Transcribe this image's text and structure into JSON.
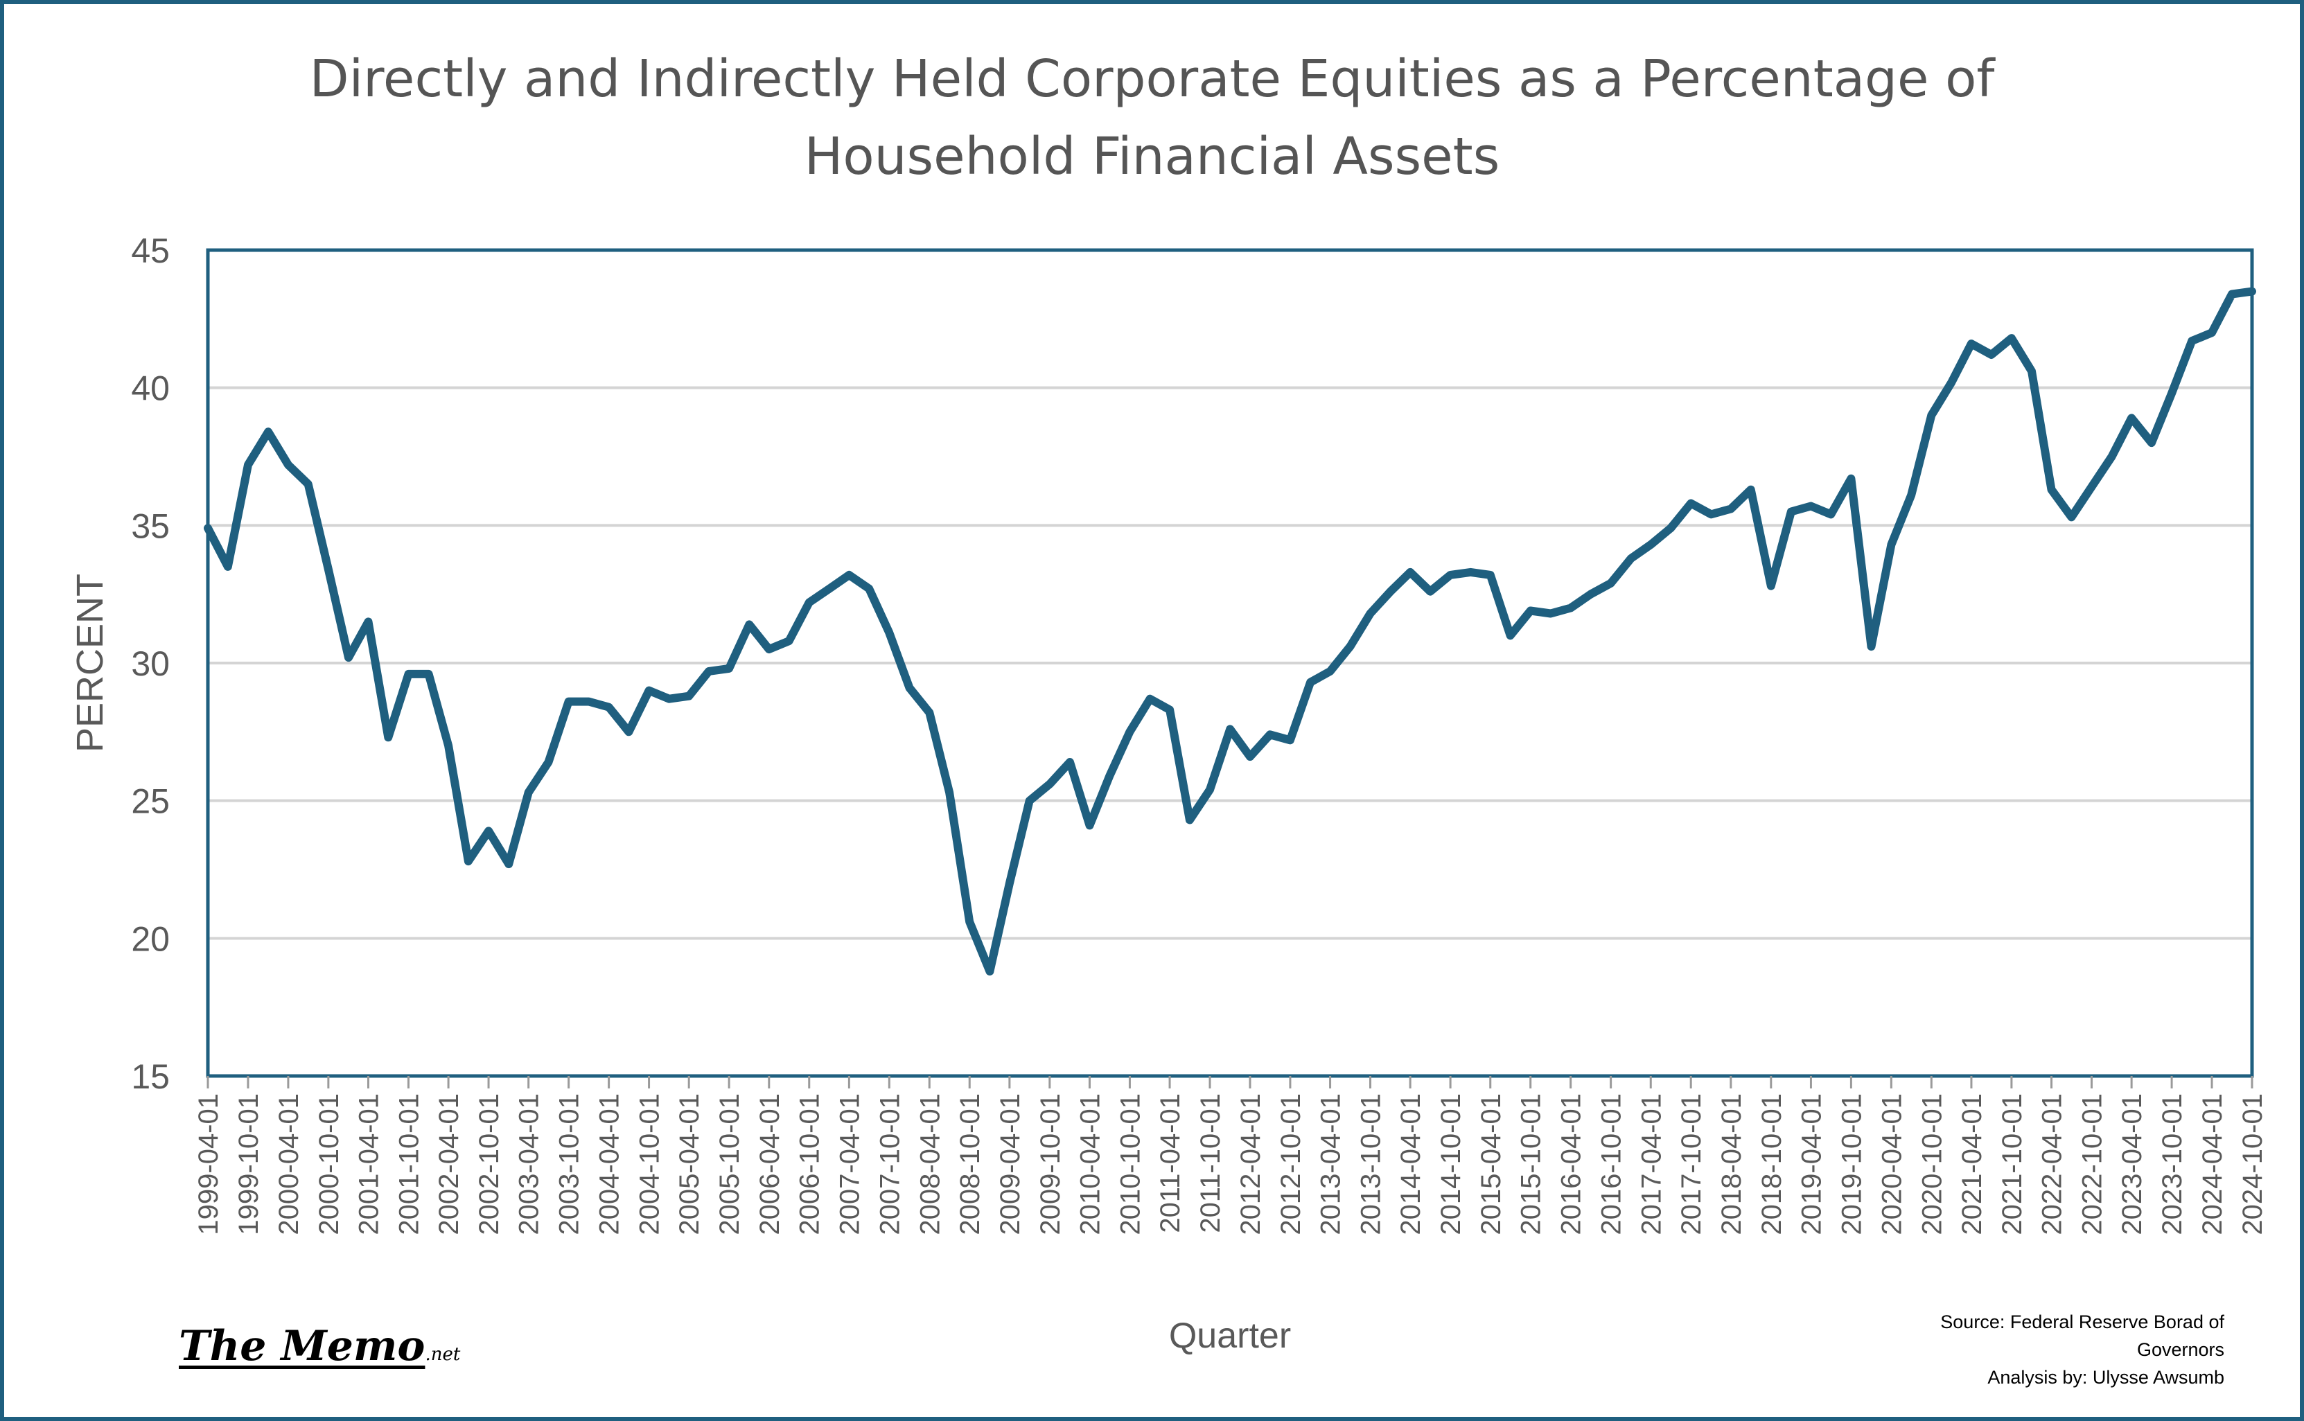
{
  "chart_data": {
    "type": "line",
    "title": "Directly and Indirectly Held Corporate Equities as a Percentage of Household  Financial Assets",
    "title_lines": [
      "Directly and Indirectly Held Corporate Equities as a Percentage of",
      "Household  Financial Assets"
    ],
    "xlabel": "Quarter",
    "ylabel": "PERCENT",
    "ylim": [
      15,
      45
    ],
    "yticks": [
      15,
      20,
      25,
      30,
      35,
      40,
      45
    ],
    "grid": true,
    "legend": "none",
    "line_color": "#1f5f7f",
    "x_tick_labels": [
      "1999-04-01",
      "1999-10-01",
      "2000-04-01",
      "2000-10-01",
      "2001-04-01",
      "2001-10-01",
      "2002-04-01",
      "2002-10-01",
      "2003-04-01",
      "2003-10-01",
      "2004-04-01",
      "2004-10-01",
      "2005-04-01",
      "2005-10-01",
      "2006-04-01",
      "2006-10-01",
      "2007-04-01",
      "2007-10-01",
      "2008-04-01",
      "2008-10-01",
      "2009-04-01",
      "2009-10-01",
      "2010-04-01",
      "2010-10-01",
      "2011-04-01",
      "2011-10-01",
      "2012-04-01",
      "2012-10-01",
      "2013-04-01",
      "2013-10-01",
      "2014-04-01",
      "2014-10-01",
      "2015-04-01",
      "2015-10-01",
      "2016-04-01",
      "2016-10-01",
      "2017-04-01",
      "2017-10-01",
      "2018-04-01",
      "2018-10-01",
      "2019-04-01",
      "2019-10-01",
      "2020-04-01",
      "2020-10-01",
      "2021-04-01",
      "2021-10-01",
      "2022-04-01",
      "2022-10-01",
      "2023-04-01",
      "2023-10-01",
      "2024-04-01",
      "2024-10-01"
    ],
    "series": [
      {
        "x": [
          "1999-04-01",
          "1999-07-01",
          "1999-10-01",
          "2000-01-01",
          "2000-04-01",
          "2000-07-01",
          "2000-10-01",
          "2001-01-01",
          "2001-04-01",
          "2001-07-01",
          "2001-10-01",
          "2002-01-01",
          "2002-04-01",
          "2002-07-01",
          "2002-10-01",
          "2003-01-01",
          "2003-04-01",
          "2003-07-01",
          "2003-10-01",
          "2004-01-01",
          "2004-04-01",
          "2004-07-01",
          "2004-10-01",
          "2005-01-01",
          "2005-04-01",
          "2005-07-01",
          "2005-10-01",
          "2006-01-01",
          "2006-04-01",
          "2006-07-01",
          "2006-10-01",
          "2007-01-01",
          "2007-04-01",
          "2007-07-01",
          "2007-10-01",
          "2008-01-01",
          "2008-04-01",
          "2008-07-01",
          "2008-10-01",
          "2009-01-01",
          "2009-04-01",
          "2009-07-01",
          "2009-10-01",
          "2010-01-01",
          "2010-04-01",
          "2010-07-01",
          "2010-10-01",
          "2011-01-01",
          "2011-04-01",
          "2011-07-01",
          "2011-10-01",
          "2012-01-01",
          "2012-04-01",
          "2012-07-01",
          "2012-10-01",
          "2013-01-01",
          "2013-04-01",
          "2013-07-01",
          "2013-10-01",
          "2014-01-01",
          "2014-04-01",
          "2014-07-01",
          "2014-10-01",
          "2015-01-01",
          "2015-04-01",
          "2015-07-01",
          "2015-10-01",
          "2016-01-01",
          "2016-04-01",
          "2016-07-01",
          "2016-10-01",
          "2017-01-01",
          "2017-04-01",
          "2017-07-01",
          "2017-10-01",
          "2018-01-01",
          "2018-04-01",
          "2018-07-01",
          "2018-10-01",
          "2019-01-01",
          "2019-04-01",
          "2019-07-01",
          "2019-10-01",
          "2020-01-01",
          "2020-04-01",
          "2020-07-01",
          "2020-10-01",
          "2021-01-01",
          "2021-04-01",
          "2021-07-01",
          "2021-10-01",
          "2022-01-01",
          "2022-04-01",
          "2022-07-01",
          "2022-10-01",
          "2023-01-01",
          "2023-04-01",
          "2023-07-01",
          "2023-10-01",
          "2024-01-01",
          "2024-04-01",
          "2024-07-01",
          "2024-10-01"
        ],
        "values": [
          34.9,
          33.5,
          37.2,
          38.4,
          37.2,
          36.5,
          33.4,
          30.2,
          31.5,
          27.3,
          29.6,
          29.6,
          27.0,
          22.8,
          23.9,
          22.7,
          25.3,
          26.4,
          28.6,
          28.6,
          28.4,
          27.5,
          29.0,
          28.7,
          28.8,
          29.7,
          29.8,
          31.4,
          30.5,
          30.8,
          32.2,
          32.7,
          33.2,
          32.7,
          31.1,
          29.1,
          28.2,
          25.3,
          20.6,
          18.8,
          22.0,
          25.0,
          25.6,
          26.4,
          24.1,
          25.9,
          27.5,
          28.7,
          28.3,
          24.3,
          25.4,
          27.6,
          26.6,
          27.4,
          27.2,
          29.3,
          29.7,
          30.6,
          31.8,
          32.6,
          33.3,
          32.6,
          33.2,
          33.3,
          33.2,
          31.0,
          31.9,
          31.8,
          32.0,
          32.5,
          32.9,
          33.8,
          34.3,
          34.9,
          35.8,
          35.4,
          35.6,
          36.3,
          32.8,
          35.5,
          35.7,
          35.4,
          36.7,
          30.6,
          34.3,
          36.1,
          39.0,
          40.2,
          41.6,
          41.2,
          41.8,
          40.6,
          36.3,
          35.3,
          36.4,
          37.5,
          38.9,
          38.0,
          39.8,
          41.7,
          42.0,
          43.4,
          43.5
        ]
      }
    ]
  },
  "branding": {
    "logo_text": "The Memo",
    "logo_suffix": ".net"
  },
  "source_note": [
    "Source: Federal Reserve Borad of",
    "Governors",
    "Analysis by: Ulysse Awsumb"
  ]
}
